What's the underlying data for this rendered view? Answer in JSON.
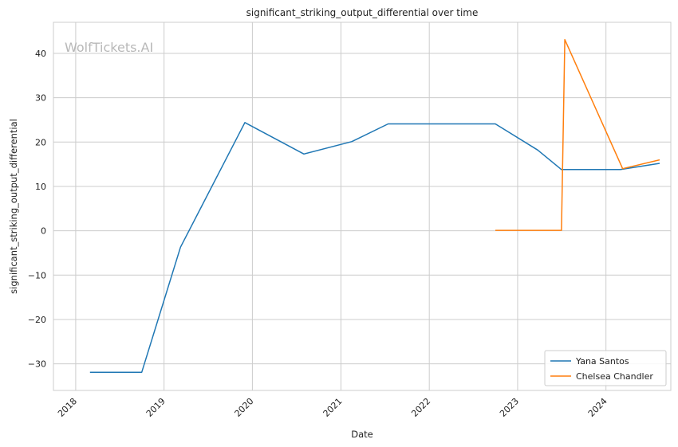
{
  "watermark": "WolfTickets.AI",
  "chart_data": {
    "type": "line",
    "title": "significant_striking_output_differential over time",
    "xlabel": "Date",
    "ylabel": "significant_striking_output_differential",
    "x_ticks": [
      "2018",
      "2019",
      "2020",
      "2021",
      "2022",
      "2023",
      "2024"
    ],
    "y_ticks": [
      -30,
      -20,
      -10,
      0,
      10,
      20,
      30,
      40
    ],
    "xlim": [
      "2017-10-01",
      "2024-09-25"
    ],
    "ylim": [
      -36,
      47
    ],
    "grid": true,
    "legend_position": "lower-right",
    "series": [
      {
        "name": "Yana Santos",
        "color": "#1f77b4",
        "points": [
          [
            "2018-03-01",
            -31.9
          ],
          [
            "2018-10-01",
            -31.9
          ],
          [
            "2019-03-10",
            -3.7
          ],
          [
            "2019-12-01",
            24.4
          ],
          [
            "2020-08-01",
            17.3
          ],
          [
            "2021-02-15",
            20.1
          ],
          [
            "2021-07-15",
            24.1
          ],
          [
            "2022-10-01",
            24.1
          ],
          [
            "2023-03-25",
            18.2
          ],
          [
            "2023-07-01",
            13.8
          ],
          [
            "2024-03-01",
            13.8
          ],
          [
            "2024-08-10",
            15.2
          ]
        ]
      },
      {
        "name": "Chelsea Chandler",
        "color": "#ff7f0e",
        "points": [
          [
            "2022-10-01",
            0.1
          ],
          [
            "2023-07-01",
            0.1
          ],
          [
            "2023-07-15",
            43.1
          ],
          [
            "2024-03-10",
            14.0
          ],
          [
            "2024-08-10",
            16.0
          ]
        ]
      }
    ]
  }
}
